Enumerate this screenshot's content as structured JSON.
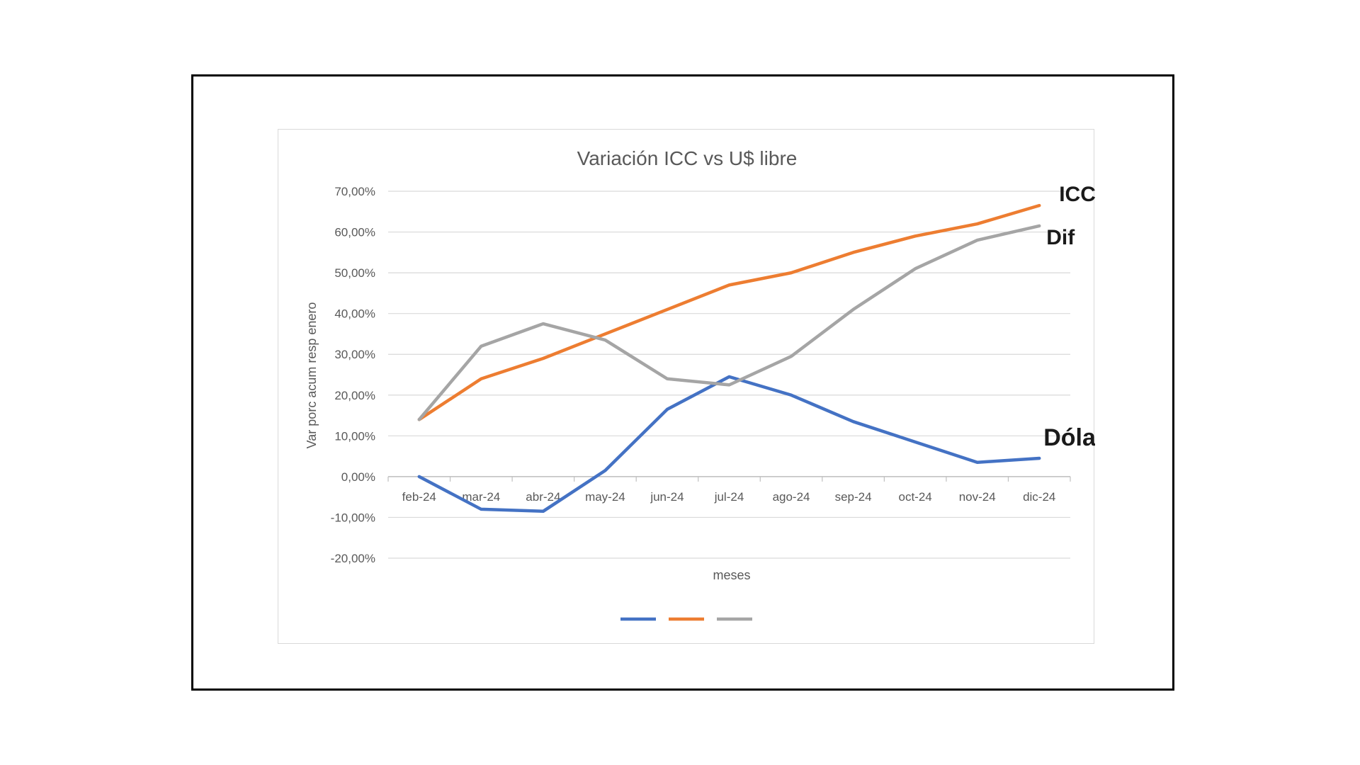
{
  "chart_data": {
    "type": "line",
    "title": "Variación ICC vs U$ libre",
    "xlabel": "meses",
    "ylabel": "Var porc acum resp enero",
    "categories": [
      "feb-24",
      "mar-24",
      "abr-24",
      "may-24",
      "jun-24",
      "jul-24",
      "ago-24",
      "sep-24",
      "oct-24",
      "nov-24",
      "dic-24"
    ],
    "ylim": [
      -20,
      70
    ],
    "yticks": [
      70,
      60,
      50,
      40,
      30,
      20,
      10,
      0,
      -10,
      -20
    ],
    "ytick_labels": [
      "70,00%",
      "60,00%",
      "50,00%",
      "40,00%",
      "30,00%",
      "20,00%",
      "10,00%",
      "0,00%",
      "-10,00%",
      "-20,00%"
    ],
    "grid": true,
    "legend_placement": "bottom",
    "series": [
      {
        "callout": "Dólar libre",
        "color": "#4472c4",
        "values": [
          0,
          -8,
          -8.5,
          1.5,
          16.5,
          24.5,
          20,
          13.5,
          8.5,
          3.5,
          4.5
        ]
      },
      {
        "callout": "ICC",
        "color": "#ed7d31",
        "values": [
          14,
          24,
          29,
          35,
          41,
          47,
          50,
          55,
          59,
          62,
          66.5
        ]
      },
      {
        "callout": "Dif",
        "color": "#a5a5a5",
        "values": [
          14,
          32,
          37.5,
          33.5,
          24,
          22.5,
          29.5,
          41,
          51,
          58,
          61.5
        ]
      }
    ]
  }
}
